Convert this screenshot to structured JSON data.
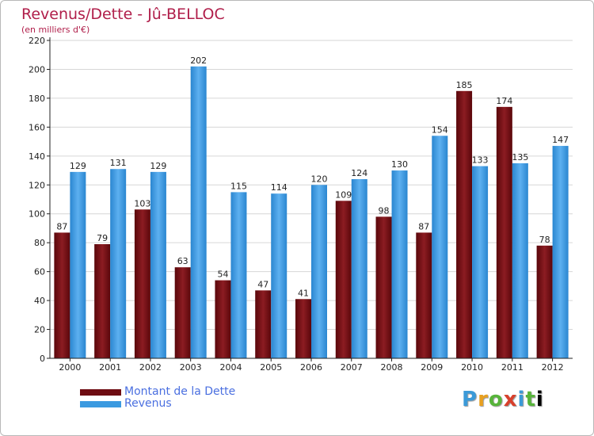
{
  "title": "Revenus/Dette - Jû-BELLOC",
  "subtitle": "(en milliers d'€)",
  "logo_text": "Proxiti",
  "colors": {
    "debt": "#7a0f14",
    "revenue": "#3b9ae0",
    "axis": "#222222",
    "grid": "#d6d6d6"
  },
  "chart_data": {
    "type": "bar",
    "title": "Revenus/Dette - Jû-BELLOC",
    "ylabel": "(en milliers d'€)",
    "xlabel": "",
    "ylim": [
      0,
      220
    ],
    "yticks": [
      0,
      20,
      40,
      60,
      80,
      100,
      120,
      140,
      160,
      180,
      200,
      220
    ],
    "categories": [
      "2000",
      "2001",
      "2002",
      "2003",
      "2004",
      "2005",
      "2006",
      "2007",
      "2008",
      "2009",
      "2010",
      "2011",
      "2012"
    ],
    "series": [
      {
        "name": "Montant de la Dette",
        "values": [
          87,
          79,
          103,
          63,
          54,
          47,
          41,
          109,
          98,
          87,
          185,
          174,
          78
        ]
      },
      {
        "name": "Revenus",
        "values": [
          129,
          131,
          129,
          202,
          115,
          114,
          120,
          124,
          130,
          154,
          133,
          135,
          147
        ]
      }
    ],
    "legend_position": "bottom-left",
    "grid": true
  }
}
